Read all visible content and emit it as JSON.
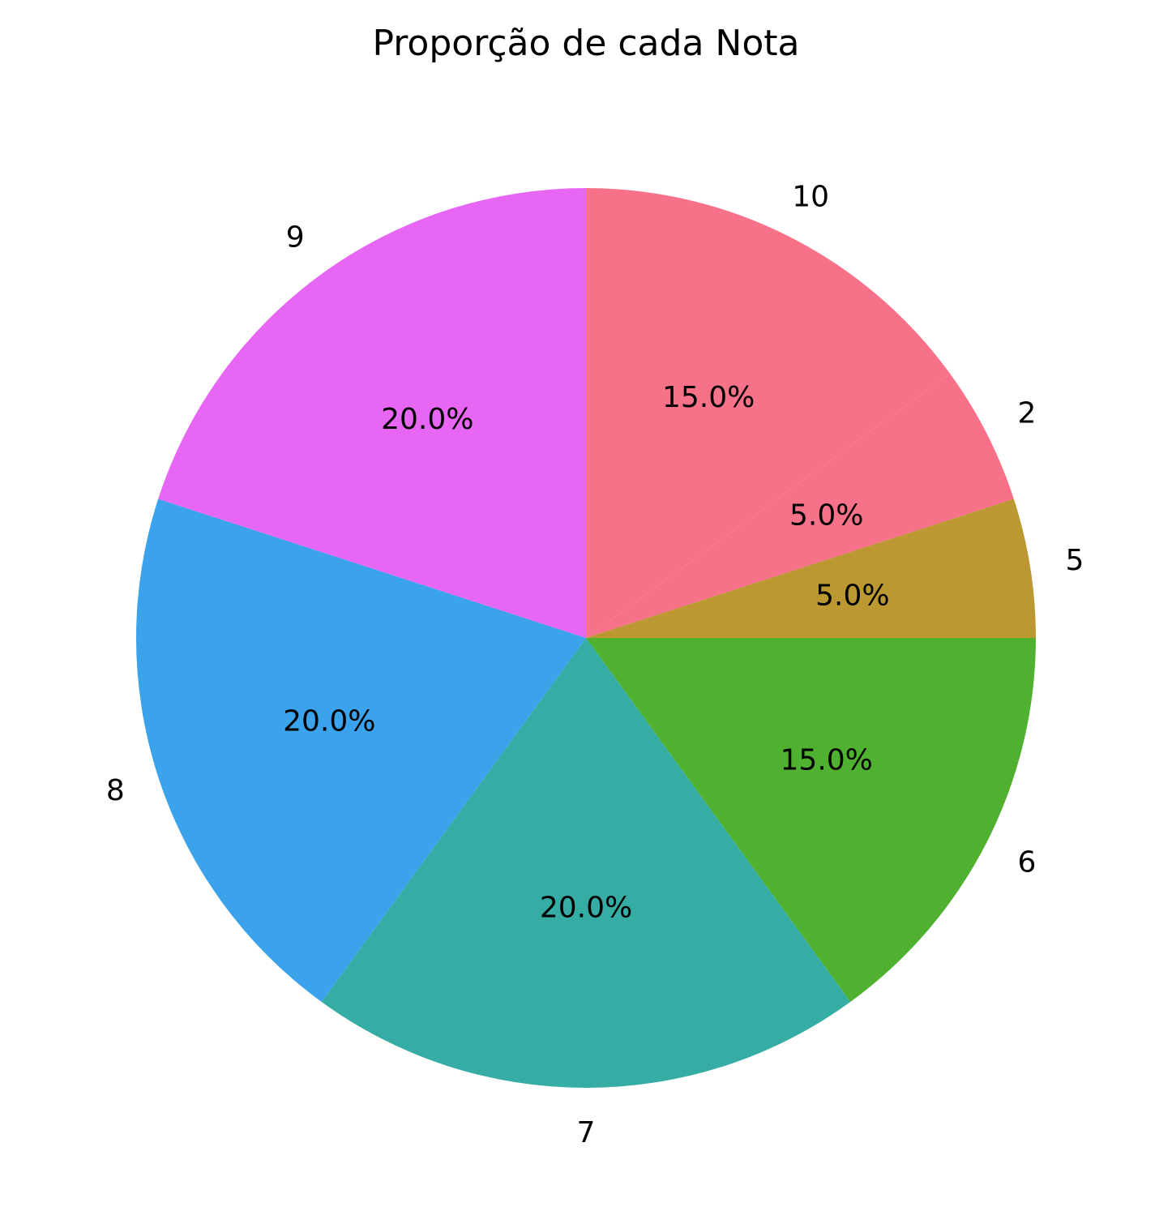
{
  "chart_data": {
    "type": "pie",
    "title": "Proporção de cada Nota",
    "slices": [
      {
        "label": "10",
        "value": 15.0,
        "pct_label": "15.0%",
        "color": "#f77189"
      },
      {
        "label": "2",
        "value": 5.0,
        "pct_label": "5.0%",
        "color": "#f77189"
      },
      {
        "label": "5",
        "value": 5.0,
        "pct_label": "5.0%",
        "color": "#bb9832"
      },
      {
        "label": "6",
        "value": 15.0,
        "pct_label": "15.0%",
        "color": "#50b131"
      },
      {
        "label": "7",
        "value": 20.0,
        "pct_label": "20.0%",
        "color": "#36ada4"
      },
      {
        "label": "8",
        "value": 20.0,
        "pct_label": "20.0%",
        "color": "#3ba3ec"
      },
      {
        "label": "9",
        "value": 20.0,
        "pct_label": "20.0%",
        "color": "#e866f4"
      }
    ],
    "start_angle_deg": -90,
    "direction": "clockwise",
    "legend": "none"
  }
}
